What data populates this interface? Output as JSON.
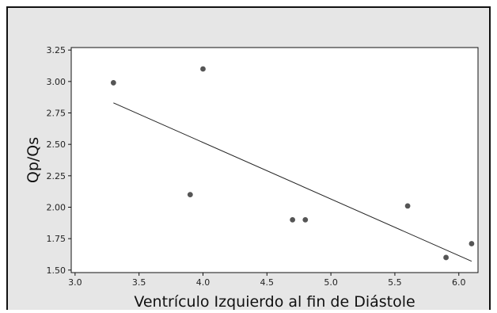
{
  "chart_data": {
    "type": "scatter",
    "title": "",
    "xlabel": "Ventrículo Izquierdo al fin de Diástole",
    "ylabel": "Qp/Qs",
    "xlim": [
      2.97,
      6.15
    ],
    "ylim": [
      1.48,
      3.27
    ],
    "x_ticks": [
      "3.0",
      "3.5",
      "4.0",
      "4.5",
      "5.0",
      "5.5",
      "6.0"
    ],
    "y_ticks": [
      "1.50",
      "1.75",
      "2.00",
      "2.25",
      "2.50",
      "2.75",
      "3.00",
      "3.25"
    ],
    "grid": false,
    "legend": "none",
    "points": [
      {
        "x": 3.3,
        "y": 2.99
      },
      {
        "x": 3.9,
        "y": 2.1
      },
      {
        "x": 4.0,
        "y": 3.1
      },
      {
        "x": 4.7,
        "y": 1.9
      },
      {
        "x": 4.8,
        "y": 1.9
      },
      {
        "x": 5.6,
        "y": 2.01
      },
      {
        "x": 5.9,
        "y": 1.6
      },
      {
        "x": 6.1,
        "y": 1.71
      }
    ],
    "fit_line": {
      "x": [
        3.3,
        6.1
      ],
      "y": [
        2.83,
        1.57
      ]
    },
    "colors": {
      "point": "#555555",
      "line": "#222222",
      "background": "#e6e6e6",
      "plot_area": "#ffffff"
    }
  }
}
